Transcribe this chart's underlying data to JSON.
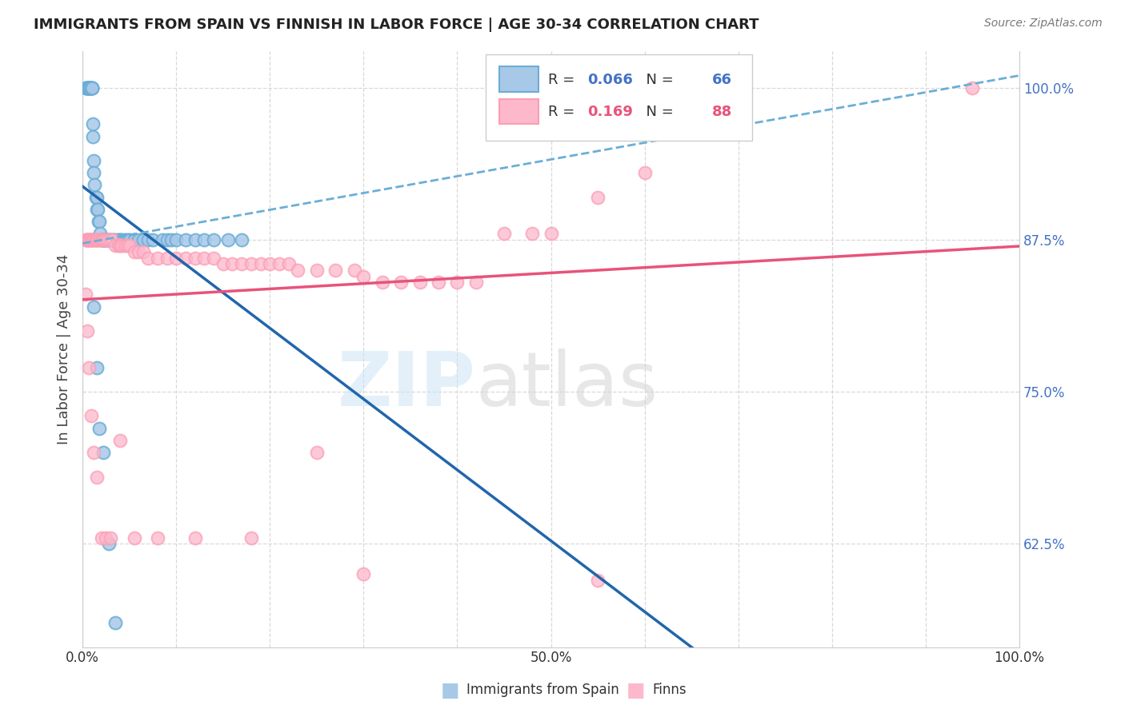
{
  "title": "IMMIGRANTS FROM SPAIN VS FINNISH IN LABOR FORCE | AGE 30-34 CORRELATION CHART",
  "source": "Source: ZipAtlas.com",
  "ylabel": "In Labor Force | Age 30-34",
  "legend_label1": "Immigrants from Spain",
  "legend_label2": "Finns",
  "R1": "0.066",
  "N1": "66",
  "R2": "0.169",
  "N2": "88",
  "color_blue_face": "#a8c8e8",
  "color_blue_edge": "#6baed6",
  "color_blue_line": "#2166ac",
  "color_blue_dash": "#6baed6",
  "color_pink_face": "#fdb8cc",
  "color_pink_edge": "#fa9fb5",
  "color_pink_line": "#e8537a",
  "color_tick_right": "#4472c4",
  "blue_points_x": [
    0.003,
    0.004,
    0.005,
    0.005,
    0.006,
    0.006,
    0.007,
    0.007,
    0.008,
    0.008,
    0.008,
    0.009,
    0.009,
    0.01,
    0.01,
    0.01,
    0.011,
    0.011,
    0.012,
    0.012,
    0.013,
    0.014,
    0.015,
    0.015,
    0.016,
    0.017,
    0.018,
    0.019,
    0.02,
    0.021,
    0.022,
    0.023,
    0.024,
    0.025,
    0.026,
    0.028,
    0.03,
    0.032,
    0.035,
    0.038,
    0.04,
    0.042,
    0.045,
    0.048,
    0.05,
    0.055,
    0.06,
    0.065,
    0.07,
    0.075,
    0.085,
    0.09,
    0.095,
    0.1,
    0.11,
    0.12,
    0.13,
    0.14,
    0.155,
    0.17,
    0.012,
    0.015,
    0.018,
    0.022,
    0.028,
    0.035
  ],
  "blue_points_y": [
    1.0,
    1.0,
    1.0,
    1.0,
    1.0,
    1.0,
    1.0,
    1.0,
    1.0,
    1.0,
    1.0,
    1.0,
    1.0,
    1.0,
    1.0,
    1.0,
    0.97,
    0.96,
    0.94,
    0.93,
    0.92,
    0.91,
    0.91,
    0.9,
    0.9,
    0.89,
    0.89,
    0.88,
    0.875,
    0.875,
    0.875,
    0.875,
    0.875,
    0.875,
    0.875,
    0.875,
    0.875,
    0.875,
    0.875,
    0.875,
    0.875,
    0.875,
    0.875,
    0.875,
    0.875,
    0.875,
    0.875,
    0.875,
    0.875,
    0.875,
    0.875,
    0.875,
    0.875,
    0.875,
    0.875,
    0.875,
    0.875,
    0.875,
    0.875,
    0.875,
    0.82,
    0.77,
    0.72,
    0.7,
    0.625,
    0.56
  ],
  "pink_points_x": [
    0.003,
    0.004,
    0.005,
    0.005,
    0.006,
    0.007,
    0.008,
    0.008,
    0.009,
    0.01,
    0.01,
    0.011,
    0.012,
    0.013,
    0.014,
    0.015,
    0.015,
    0.016,
    0.018,
    0.019,
    0.02,
    0.021,
    0.022,
    0.024,
    0.025,
    0.027,
    0.03,
    0.032,
    0.035,
    0.038,
    0.04,
    0.042,
    0.045,
    0.048,
    0.05,
    0.055,
    0.06,
    0.065,
    0.07,
    0.08,
    0.09,
    0.1,
    0.11,
    0.12,
    0.13,
    0.14,
    0.15,
    0.16,
    0.17,
    0.18,
    0.19,
    0.2,
    0.21,
    0.22,
    0.23,
    0.25,
    0.27,
    0.29,
    0.3,
    0.32,
    0.34,
    0.36,
    0.38,
    0.4,
    0.42,
    0.45,
    0.48,
    0.5,
    0.55,
    0.6,
    0.003,
    0.005,
    0.007,
    0.009,
    0.012,
    0.015,
    0.02,
    0.025,
    0.03,
    0.04,
    0.055,
    0.08,
    0.12,
    0.18,
    0.25,
    0.3,
    0.55,
    0.95
  ],
  "pink_points_y": [
    0.875,
    0.875,
    0.875,
    0.875,
    0.875,
    0.875,
    0.875,
    0.875,
    0.875,
    0.875,
    0.875,
    0.875,
    0.875,
    0.875,
    0.875,
    0.875,
    0.875,
    0.875,
    0.875,
    0.875,
    0.875,
    0.875,
    0.875,
    0.875,
    0.875,
    0.875,
    0.875,
    0.875,
    0.87,
    0.87,
    0.87,
    0.87,
    0.87,
    0.87,
    0.87,
    0.865,
    0.865,
    0.865,
    0.86,
    0.86,
    0.86,
    0.86,
    0.86,
    0.86,
    0.86,
    0.86,
    0.855,
    0.855,
    0.855,
    0.855,
    0.855,
    0.855,
    0.855,
    0.855,
    0.85,
    0.85,
    0.85,
    0.85,
    0.845,
    0.84,
    0.84,
    0.84,
    0.84,
    0.84,
    0.84,
    0.88,
    0.88,
    0.88,
    0.91,
    0.93,
    0.83,
    0.8,
    0.77,
    0.73,
    0.7,
    0.68,
    0.63,
    0.63,
    0.63,
    0.71,
    0.63,
    0.63,
    0.63,
    0.63,
    0.7,
    0.6,
    0.595,
    1.0
  ],
  "ylim_min": 0.54,
  "ylim_max": 1.03,
  "xlim_min": 0.0,
  "xlim_max": 1.0,
  "ytick_vals": [
    0.625,
    0.75,
    0.875,
    1.0
  ],
  "ytick_labels": [
    "62.5%",
    "75.0%",
    "87.5%",
    "100.0%"
  ],
  "xtick_vals": [
    0.0,
    0.5,
    1.0
  ],
  "xtick_labels": [
    "0.0%",
    "50.0%",
    "100.0%"
  ]
}
